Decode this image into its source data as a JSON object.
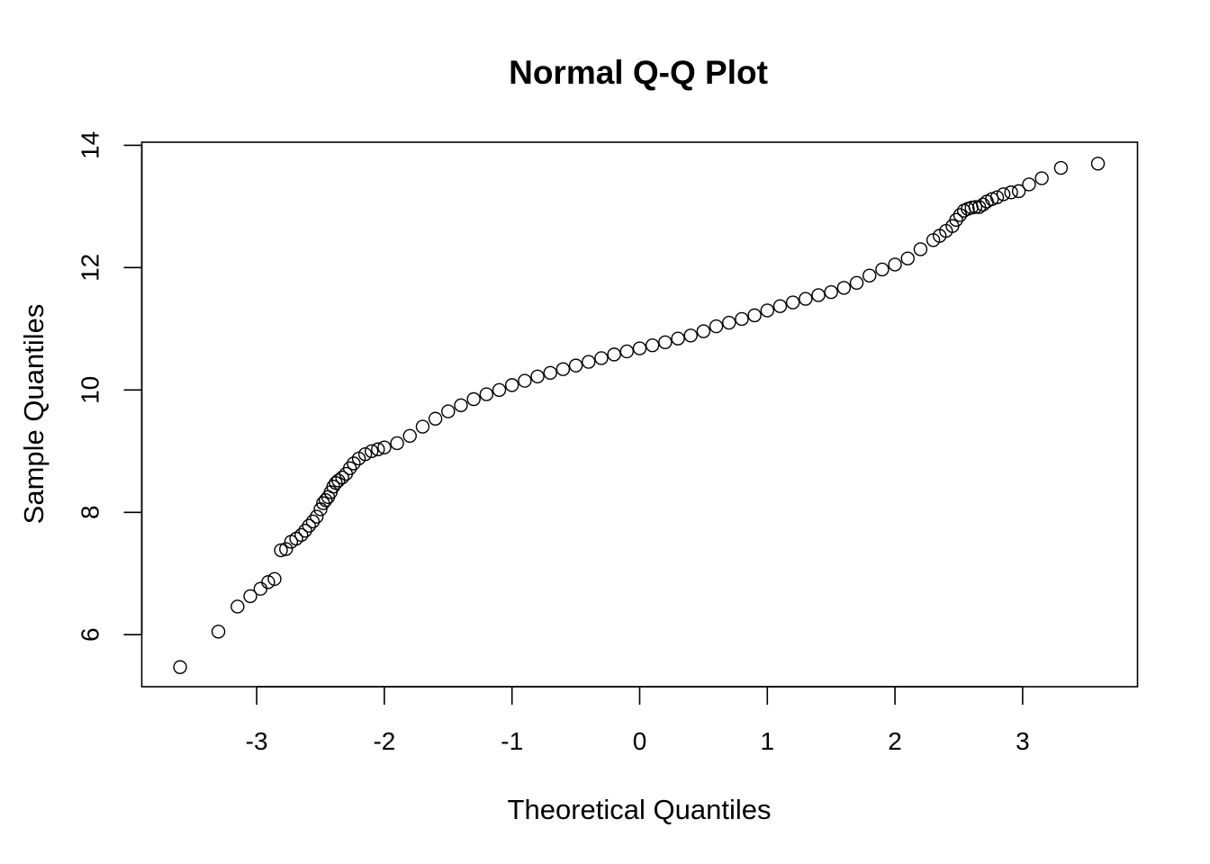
{
  "chart_data": {
    "type": "scatter",
    "title": "Normal Q-Q Plot",
    "xlabel": "Theoretical Quantiles",
    "ylabel": "Sample Quantiles",
    "xlim": [
      -3.9,
      3.9
    ],
    "ylim": [
      5.15,
      14.05
    ],
    "x_ticks": [
      -3,
      -2,
      -1,
      0,
      1,
      2,
      3
    ],
    "y_ticks": [
      6,
      8,
      10,
      12,
      14
    ],
    "grid": false,
    "legend": "none",
    "point_color": "#000000",
    "series": [
      {
        "x": [
          -3.6,
          -3.3,
          -3.15,
          -3.05,
          -2.97,
          -2.91,
          -2.86,
          -2.81,
          -2.77,
          -2.73,
          -2.69,
          -2.65,
          -2.62,
          -2.59,
          -2.56,
          -2.53,
          -2.5,
          -2.48,
          -2.46,
          -2.44,
          -2.42,
          -2.4,
          -2.38,
          -2.36,
          -2.33,
          -2.3,
          -2.27,
          -2.24,
          -2.2,
          -2.15,
          -2.1,
          -2.05,
          -2.0,
          -1.9,
          -1.8,
          -1.7,
          -1.6,
          -1.5,
          -1.4,
          -1.3,
          -1.2,
          -1.1,
          -1.0,
          -0.9,
          -0.8,
          -0.7,
          -0.6,
          -0.5,
          -0.4,
          -0.3,
          -0.2,
          -0.1,
          0.0,
          0.1,
          0.2,
          0.3,
          0.4,
          0.5,
          0.6,
          0.7,
          0.8,
          0.9,
          1.0,
          1.1,
          1.2,
          1.3,
          1.4,
          1.5,
          1.6,
          1.7,
          1.8,
          1.9,
          2.0,
          2.1,
          2.2,
          2.3,
          2.35,
          2.4,
          2.45,
          2.48,
          2.51,
          2.54,
          2.57,
          2.6,
          2.63,
          2.66,
          2.69,
          2.72,
          2.76,
          2.8,
          2.85,
          2.91,
          2.97,
          3.05,
          3.15,
          3.3,
          3.59
        ],
        "y": [
          5.47,
          6.05,
          6.46,
          6.63,
          6.75,
          6.86,
          6.91,
          7.38,
          7.4,
          7.52,
          7.57,
          7.63,
          7.7,
          7.78,
          7.85,
          7.93,
          8.05,
          8.15,
          8.2,
          8.25,
          8.33,
          8.42,
          8.48,
          8.52,
          8.57,
          8.63,
          8.72,
          8.8,
          8.88,
          8.95,
          9.0,
          9.03,
          9.06,
          9.13,
          9.25,
          9.4,
          9.53,
          9.65,
          9.75,
          9.85,
          9.93,
          10.0,
          10.08,
          10.15,
          10.22,
          10.28,
          10.34,
          10.4,
          10.46,
          10.52,
          10.58,
          10.63,
          10.68,
          10.73,
          10.78,
          10.84,
          10.89,
          10.96,
          11.04,
          11.1,
          11.16,
          11.22,
          11.3,
          11.37,
          11.43,
          11.49,
          11.55,
          11.6,
          11.67,
          11.75,
          11.87,
          11.97,
          12.05,
          12.15,
          12.3,
          12.45,
          12.52,
          12.6,
          12.68,
          12.78,
          12.86,
          12.93,
          12.96,
          12.98,
          12.99,
          12.99,
          13.03,
          13.08,
          13.12,
          13.15,
          13.2,
          13.23,
          13.25,
          13.36,
          13.46,
          13.63,
          13.7
        ]
      }
    ]
  }
}
